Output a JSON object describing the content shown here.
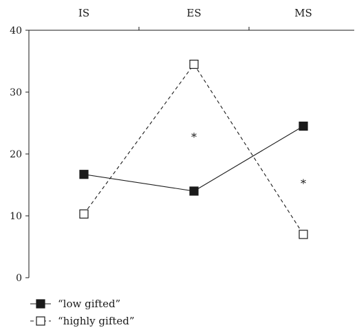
{
  "chart_data": {
    "type": "line",
    "categories": [
      "IS",
      "ES",
      "MS"
    ],
    "ylim": [
      0,
      40
    ],
    "yticks": [
      0,
      10,
      20,
      30,
      40
    ],
    "grid": false,
    "legend_placement": "bottom-left",
    "series": [
      {
        "name": "“low gifted”",
        "values": [
          16.7,
          14.0,
          24.5
        ],
        "line_style": "solid",
        "marker": "filled-square",
        "color": "#1a1a1a"
      },
      {
        "name": "“highly gifted”",
        "values": [
          10.3,
          34.5,
          7.0
        ],
        "line_style": "dashed",
        "marker": "open-square",
        "color": "#1a1a1a"
      }
    ],
    "annotations": [
      {
        "text": "*",
        "category": "ES",
        "y": 23.0
      },
      {
        "text": "*",
        "category": "MS",
        "y": 15.5
      }
    ]
  }
}
